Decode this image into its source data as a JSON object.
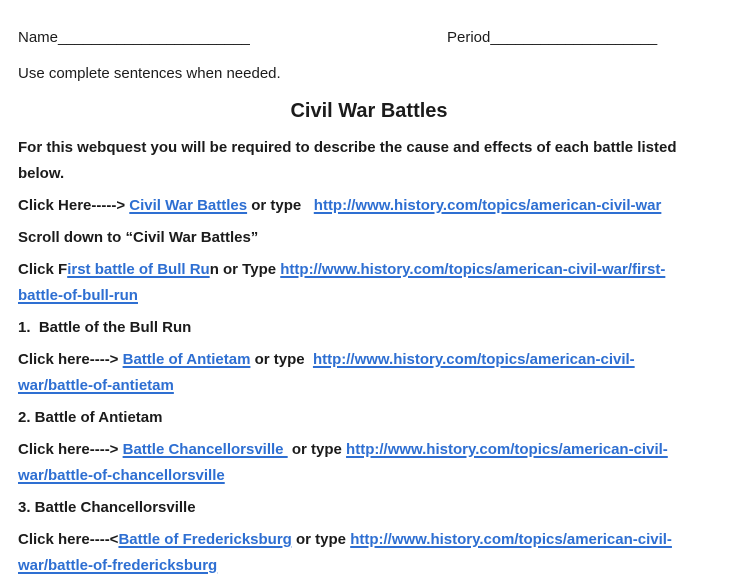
{
  "colors": {
    "link_blue": "#2e6fd2",
    "text_black": "#1b1b1b",
    "page_bg": "#ffffff"
  },
  "header": {
    "name_label": "Name",
    "name_blank": "_______________________",
    "period_label": "Period",
    "period_blank": "____________________"
  },
  "instruction": "Use complete sentences when needed.",
  "title": "Civil War Battles",
  "intro": {
    "line1": "For this webquest you will be required to describe the cause and effects of each battle listed",
    "line2": "below."
  },
  "links": {
    "main": {
      "pre": "Click Here-----> ",
      "link": "Civil War Battles",
      "mid": " or type   ",
      "url": "http://www.history.com/topics/american-civil-war"
    },
    "scroll_note": "Scroll down to “Civil War Battles”",
    "bullrun": {
      "pre": "Click F",
      "link": "irst battle of Bull Ru",
      "mid": "n or Type ",
      "url_line1": "http://www.history.com/topics/american-civil-war/first-",
      "url_line2": "battle-of-bull-run"
    },
    "antietam": {
      "pre": "Click here----> ",
      "link": "Battle of Antietam",
      "mid": " or type  ",
      "url_line1": "http://www.history.com/topics/american-civil-",
      "url_line2": "war/battle-of-antietam"
    },
    "chancellorsville": {
      "pre": "Click here----> ",
      "link": "Battle Chancellorsville ",
      "mid": " or type ",
      "url_line1": "http://www.history.com/topics/american-civil-",
      "url_line2": "war/battle-of-chancellorsville"
    },
    "fredericksburg": {
      "pre": "Click here----<",
      "link": "Battle of Fredericksburg",
      "mid": " or type ",
      "url_line1": "http://www.history.com/topics/american-civil-",
      "url_line2": "war/battle-of-fredericksburg"
    }
  },
  "items": {
    "item1": "1.  Battle of the Bull Run",
    "item2": "2. Battle of Antietam",
    "item3": "3. Battle Chancellorsville"
  }
}
